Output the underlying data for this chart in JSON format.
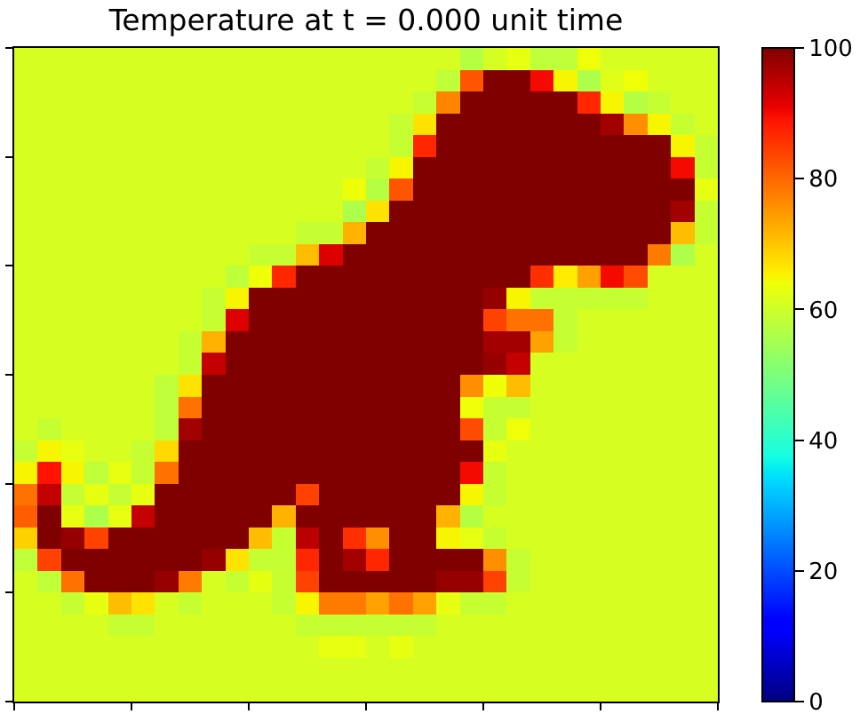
{
  "chart_data": {
    "type": "heatmap",
    "title": "Temperature at t = 0.000 unit time",
    "categories": [
      null,
      null,
      null,
      null,
      null,
      null,
      null,
      null,
      null,
      null,
      null,
      null,
      null,
      null,
      null,
      null,
      null,
      null,
      null,
      null,
      null,
      null,
      null,
      null,
      null,
      null,
      null,
      null,
      null,
      null
    ],
    "y_categories": [
      null,
      null,
      null,
      null,
      null,
      null,
      null,
      null,
      null,
      null,
      null,
      null,
      null,
      null,
      null,
      null,
      null,
      null,
      null,
      null,
      null,
      null,
      null,
      null,
      null,
      null,
      null,
      null,
      null,
      null
    ],
    "cells": [
      [
        61,
        61,
        61,
        61,
        61,
        61,
        61,
        61,
        61,
        61,
        61,
        61,
        61,
        61,
        61,
        61,
        61,
        61,
        61,
        57,
        61,
        63,
        58,
        58,
        64,
        61,
        61,
        61,
        61,
        61
      ],
      [
        61,
        61,
        61,
        61,
        61,
        61,
        61,
        61,
        61,
        61,
        61,
        61,
        61,
        61,
        61,
        61,
        61,
        61,
        58,
        82,
        100,
        100,
        90,
        65,
        56,
        62,
        64,
        61,
        61,
        61
      ],
      [
        61,
        61,
        61,
        61,
        61,
        61,
        61,
        61,
        61,
        61,
        61,
        61,
        61,
        61,
        61,
        61,
        61,
        59,
        77,
        100,
        100,
        100,
        100,
        100,
        87,
        65,
        57,
        59,
        61,
        61
      ],
      [
        61,
        61,
        61,
        61,
        61,
        61,
        61,
        61,
        61,
        61,
        61,
        61,
        61,
        61,
        61,
        61,
        59,
        67,
        100,
        100,
        100,
        100,
        100,
        100,
        100,
        97,
        76,
        65,
        59,
        61
      ],
      [
        61,
        61,
        61,
        61,
        61,
        61,
        61,
        61,
        61,
        61,
        61,
        61,
        61,
        61,
        61,
        61,
        59,
        87,
        100,
        100,
        100,
        100,
        100,
        100,
        100,
        100,
        100,
        100,
        65,
        59
      ],
      [
        61,
        61,
        61,
        61,
        61,
        61,
        61,
        61,
        61,
        61,
        61,
        61,
        61,
        61,
        61,
        59,
        65,
        100,
        100,
        100,
        100,
        100,
        100,
        100,
        100,
        100,
        100,
        100,
        90,
        59
      ],
      [
        61,
        61,
        61,
        61,
        61,
        61,
        61,
        61,
        61,
        61,
        61,
        61,
        61,
        61,
        64,
        57,
        82,
        100,
        100,
        100,
        100,
        100,
        100,
        100,
        100,
        100,
        100,
        100,
        100,
        63
      ],
      [
        61,
        61,
        61,
        61,
        61,
        61,
        61,
        61,
        61,
        61,
        61,
        61,
        61,
        61,
        56,
        67,
        100,
        100,
        100,
        100,
        100,
        100,
        100,
        100,
        100,
        100,
        100,
        100,
        97,
        59
      ],
      [
        61,
        61,
        61,
        61,
        61,
        61,
        61,
        61,
        61,
        61,
        61,
        61,
        59,
        59,
        72,
        100,
        100,
        100,
        100,
        100,
        100,
        100,
        100,
        100,
        100,
        100,
        100,
        100,
        71,
        59
      ],
      [
        61,
        61,
        61,
        61,
        61,
        61,
        61,
        61,
        61,
        61,
        59,
        59,
        71,
        92,
        100,
        100,
        100,
        100,
        100,
        100,
        100,
        100,
        100,
        100,
        100,
        100,
        100,
        78,
        56,
        61
      ],
      [
        61,
        61,
        61,
        61,
        61,
        61,
        61,
        61,
        61,
        58,
        64,
        87,
        100,
        100,
        100,
        100,
        100,
        100,
        100,
        100,
        100,
        100,
        86,
        66,
        74,
        90,
        83,
        61,
        61,
        61
      ],
      [
        61,
        61,
        61,
        61,
        61,
        61,
        61,
        61,
        59,
        65,
        100,
        100,
        100,
        100,
        100,
        100,
        100,
        100,
        100,
        100,
        98,
        65,
        59,
        59,
        59,
        59,
        59,
        61,
        61,
        61
      ],
      [
        61,
        61,
        61,
        61,
        61,
        61,
        61,
        61,
        59,
        92,
        100,
        100,
        100,
        100,
        100,
        100,
        100,
        100,
        100,
        100,
        84,
        79,
        79,
        59,
        61,
        61,
        61,
        61,
        61,
        61
      ],
      [
        61,
        61,
        61,
        61,
        61,
        61,
        61,
        59,
        72,
        100,
        100,
        100,
        100,
        100,
        100,
        100,
        100,
        100,
        100,
        100,
        97,
        97,
        74,
        59,
        61,
        61,
        61,
        61,
        61,
        61
      ],
      [
        61,
        61,
        61,
        61,
        61,
        61,
        61,
        59,
        94,
        100,
        100,
        100,
        100,
        100,
        100,
        100,
        100,
        100,
        100,
        100,
        98,
        94,
        61,
        61,
        61,
        61,
        61,
        61,
        61,
        61
      ],
      [
        61,
        61,
        61,
        61,
        61,
        61,
        58,
        67,
        100,
        100,
        100,
        100,
        100,
        100,
        100,
        100,
        100,
        100,
        100,
        76,
        64,
        71,
        61,
        61,
        61,
        61,
        61,
        61,
        61,
        61
      ],
      [
        61,
        61,
        61,
        61,
        61,
        61,
        58,
        79,
        100,
        100,
        100,
        100,
        100,
        100,
        100,
        100,
        100,
        100,
        100,
        64,
        59,
        59,
        61,
        61,
        61,
        61,
        61,
        61,
        61,
        61
      ],
      [
        61,
        59,
        61,
        61,
        61,
        61,
        58,
        97,
        100,
        100,
        100,
        100,
        100,
        100,
        100,
        100,
        100,
        100,
        100,
        83,
        59,
        64,
        61,
        61,
        61,
        61,
        61,
        61,
        61,
        61
      ],
      [
        59,
        65,
        63,
        61,
        61,
        59,
        68,
        100,
        100,
        100,
        100,
        100,
        100,
        100,
        100,
        100,
        100,
        100,
        100,
        100,
        63,
        61,
        61,
        61,
        61,
        61,
        61,
        61,
        61,
        61
      ],
      [
        65,
        89,
        65,
        58,
        63,
        59,
        79,
        100,
        100,
        100,
        100,
        100,
        100,
        100,
        100,
        100,
        100,
        100,
        100,
        90,
        59,
        61,
        61,
        61,
        61,
        61,
        61,
        61,
        61,
        61
      ],
      [
        79,
        94,
        59,
        63,
        59,
        63,
        100,
        100,
        100,
        100,
        100,
        100,
        84,
        100,
        100,
        100,
        100,
        100,
        100,
        65,
        59,
        61,
        61,
        61,
        61,
        61,
        61,
        61,
        61,
        61
      ],
      [
        81,
        100,
        63,
        56,
        63,
        94,
        100,
        100,
        100,
        100,
        100,
        72,
        100,
        100,
        100,
        100,
        100,
        100,
        72,
        57,
        61,
        61,
        61,
        61,
        61,
        61,
        61,
        61,
        61,
        61
      ],
      [
        69,
        100,
        98,
        84,
        100,
        100,
        100,
        100,
        100,
        100,
        71,
        59,
        95,
        100,
        86,
        76,
        100,
        100,
        65,
        63,
        59,
        61,
        61,
        61,
        61,
        61,
        61,
        61,
        61,
        61
      ],
      [
        58,
        84,
        100,
        100,
        100,
        100,
        100,
        100,
        98,
        67,
        59,
        59,
        87,
        100,
        97,
        87,
        100,
        100,
        100,
        100,
        76,
        59,
        61,
        61,
        61,
        61,
        61,
        61,
        61,
        61
      ],
      [
        61,
        58,
        79,
        100,
        100,
        100,
        98,
        78,
        61,
        59,
        63,
        59,
        84,
        100,
        100,
        100,
        100,
        100,
        98,
        98,
        84,
        59,
        61,
        61,
        61,
        61,
        61,
        61,
        61,
        61
      ],
      [
        61,
        61,
        59,
        63,
        71,
        67,
        61,
        59,
        61,
        61,
        61,
        59,
        65,
        78,
        78,
        74,
        79,
        74,
        63,
        59,
        59,
        61,
        61,
        61,
        61,
        61,
        61,
        61,
        61,
        61
      ],
      [
        61,
        61,
        61,
        61,
        59,
        59,
        61,
        61,
        61,
        61,
        61,
        61,
        59,
        59,
        59,
        59,
        59,
        59,
        61,
        61,
        61,
        61,
        61,
        61,
        61,
        61,
        61,
        61,
        61,
        61
      ],
      [
        61,
        61,
        61,
        61,
        61,
        61,
        61,
        61,
        61,
        61,
        61,
        61,
        61,
        63,
        63,
        61,
        63,
        61,
        61,
        61,
        61,
        61,
        61,
        61,
        61,
        61,
        61,
        61,
        61,
        61
      ],
      [
        61,
        61,
        61,
        61,
        61,
        61,
        61,
        61,
        61,
        61,
        61,
        61,
        61,
        61,
        61,
        61,
        61,
        61,
        61,
        61,
        61,
        61,
        61,
        61,
        61,
        61,
        61,
        61,
        61,
        61
      ],
      [
        61,
        61,
        61,
        61,
        61,
        61,
        61,
        61,
        61,
        61,
        61,
        61,
        61,
        61,
        61,
        61,
        61,
        61,
        61,
        61,
        61,
        61,
        61,
        61,
        61,
        61,
        61,
        61,
        61,
        61
      ]
    ],
    "clim": [
      0,
      100
    ],
    "cticks": [
      0,
      20,
      40,
      60,
      80,
      100
    ]
  }
}
